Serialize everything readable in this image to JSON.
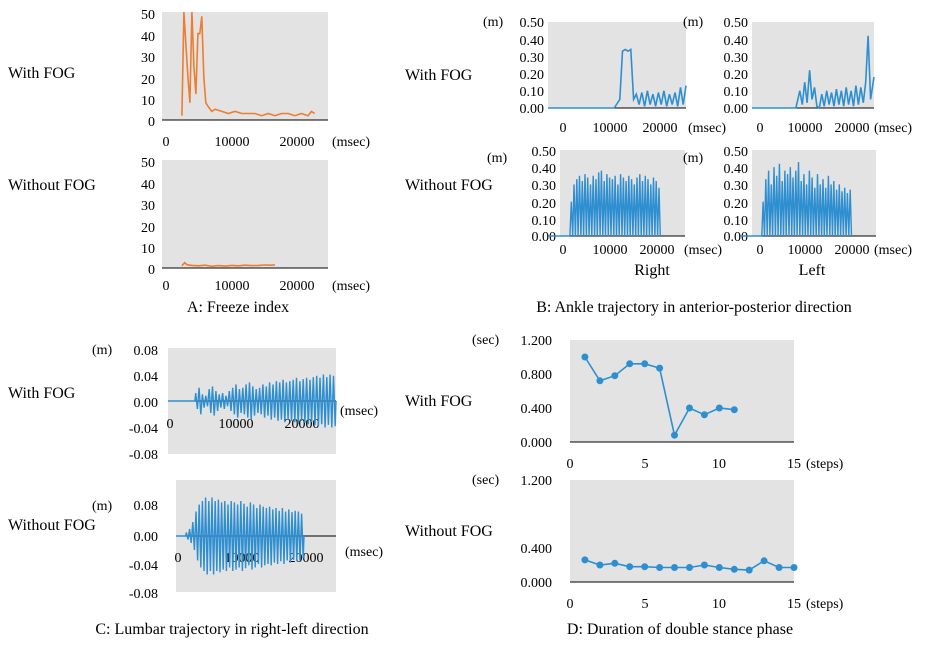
{
  "colors": {
    "orange": "#ed7d31",
    "blue": "#2e8fd0",
    "plot_bg": "#e3e3e3"
  },
  "panels": {
    "A": {
      "caption": "A: Freeze index",
      "row_labels": [
        "With FOG",
        "Without FOG"
      ],
      "x_unit": "(msec)",
      "y_ticks": [
        "0",
        "10",
        "20",
        "30",
        "40",
        "50"
      ],
      "x_ticks": [
        "0",
        "10000",
        "20000"
      ]
    },
    "B": {
      "caption": "B: Ankle trajectory in anterior-posterior direction",
      "row_labels": [
        "With FOG",
        "Without FOG"
      ],
      "y_unit": "(m)",
      "x_unit": "(msec)",
      "y_ticks": [
        "0.00",
        "0.10",
        "0.20",
        "0.30",
        "0.40",
        "0.50"
      ],
      "x_ticks": [
        "0",
        "10000",
        "20000"
      ],
      "col_labels": [
        "Right",
        "Left"
      ]
    },
    "C": {
      "caption": "C: Lumbar trajectory in right-left direction",
      "row_labels": [
        "With FOG",
        "Without FOG"
      ],
      "y_unit": "(m)",
      "x_unit": "(msec)",
      "y_ticks": [
        "0.08",
        "0.04",
        "0.00",
        "-0.04",
        "-0.08"
      ],
      "x_ticks": [
        "0",
        "10000",
        "20000"
      ]
    },
    "D": {
      "caption": "D: Duration of double stance phase",
      "row_labels": [
        "With FOG",
        "Without FOG"
      ],
      "y_unit": "(sec)",
      "x_unit": "(steps)",
      "y_ticks": [
        "0.000",
        "0.400",
        "0.800",
        "1.200"
      ],
      "x_ticks": [
        "0",
        "5",
        "10",
        "15"
      ]
    }
  },
  "chart_data": [
    {
      "id": "A-with",
      "type": "line",
      "panel": "A",
      "row": "With FOG",
      "xlim": [
        0,
        25000
      ],
      "ylim": [
        0,
        50
      ],
      "series": [
        {
          "color": "#ed7d31",
          "x": [
            3000,
            3300,
            3600,
            3900,
            4200,
            4500,
            4800,
            5100,
            5400,
            5700,
            6000,
            6300,
            6600,
            7000,
            7500,
            8000,
            9000,
            10000,
            11000,
            12000,
            13000,
            14000,
            15000,
            16000,
            17000,
            18000,
            19000,
            20000,
            21000,
            22000,
            22500,
            23000
          ],
          "y": [
            2,
            50,
            35,
            20,
            8,
            50,
            25,
            12,
            40,
            40,
            48,
            20,
            8,
            6,
            4,
            5,
            4,
            3,
            4,
            3,
            3,
            3,
            2,
            3,
            2,
            3,
            3,
            2,
            3,
            2,
            4,
            3
          ]
        }
      ]
    },
    {
      "id": "A-without",
      "type": "line",
      "panel": "A",
      "row": "Without FOG",
      "xlim": [
        0,
        25000
      ],
      "ylim": [
        0,
        50
      ],
      "series": [
        {
          "color": "#ed7d31",
          "x": [
            3000,
            3400,
            3800,
            4500,
            5500,
            6500,
            7500,
            8500,
            9500,
            10500,
            11500,
            12500,
            13500,
            14500,
            15500,
            16500,
            17000
          ],
          "y": [
            1,
            2.5,
            1.5,
            1.2,
            1.0,
            1.3,
            0.8,
            1.1,
            0.9,
            1.2,
            1.0,
            1.3,
            1.1,
            1.2,
            1.4,
            1.3,
            1.5
          ]
        }
      ]
    },
    {
      "id": "B-with-right",
      "type": "line",
      "panel": "B",
      "row": "With FOG",
      "column": "Right",
      "xlim": [
        0,
        25000
      ],
      "ylim": [
        0,
        0.5
      ],
      "series": [
        {
          "color": "#2e8fd0",
          "x": [
            0,
            12000,
            13000,
            13500,
            14000,
            14500,
            15000,
            15500,
            16000,
            16500,
            17000,
            17500,
            18000,
            18500,
            19000,
            19500,
            20000,
            20500,
            21000,
            21500,
            22000,
            22500,
            23000,
            23500,
            24000,
            24500,
            25000
          ],
          "y": [
            0,
            0,
            0.05,
            0.33,
            0.34,
            0.33,
            0.34,
            0.05,
            0.08,
            0.02,
            0.09,
            0.01,
            0.1,
            0.02,
            0.08,
            0.01,
            0.09,
            0.02,
            0.1,
            0.01,
            0.08,
            0.02,
            0.09,
            0.01,
            0.12,
            0.02,
            0.13
          ]
        }
      ]
    },
    {
      "id": "B-with-left",
      "type": "line",
      "panel": "B",
      "row": "With FOG",
      "column": "Left",
      "xlim": [
        0,
        25000
      ],
      "ylim": [
        0,
        0.5
      ],
      "series": [
        {
          "color": "#2e8fd0",
          "x": [
            0,
            9000,
            9800,
            10300,
            10800,
            11300,
            11800,
            12300,
            12800,
            13300,
            13800,
            14300,
            14800,
            15300,
            15800,
            16300,
            16800,
            17300,
            17800,
            18300,
            18800,
            19300,
            19800,
            20300,
            20800,
            21300,
            21800,
            22300,
            22800,
            23300,
            23800,
            24300,
            25000
          ],
          "y": [
            0,
            0,
            0.1,
            0.02,
            0.15,
            0.03,
            0.22,
            0.05,
            0.12,
            0.01,
            0,
            0.08,
            0.01,
            0.1,
            0.02,
            0.09,
            0.01,
            0.11,
            0.02,
            0.1,
            0.01,
            0.12,
            0.02,
            0.1,
            0.01,
            0.13,
            0.02,
            0.12,
            0.03,
            0.15,
            0.42,
            0.05,
            0.18
          ]
        }
      ]
    },
    {
      "id": "B-without-right",
      "type": "line",
      "panel": "B",
      "row": "Without FOG",
      "column": "Right",
      "xlim": [
        0,
        25000
      ],
      "ylim": [
        0,
        0.5
      ],
      "series": [
        {
          "color": "#2e8fd0",
          "x": [],
          "y": []
        }
      ],
      "pattern": {
        "x_start": 4000,
        "x_end": 20500,
        "period": 500,
        "peaks": [
          0.2,
          0.3,
          0.33,
          0.35,
          0.32,
          0.36,
          0.34,
          0.3,
          0.35,
          0.33,
          0.37,
          0.38,
          0.32,
          0.36,
          0.34,
          0.33,
          0.35,
          0.3,
          0.36,
          0.34,
          0.32,
          0.35,
          0.33,
          0.3,
          0.34,
          0.36,
          0.32,
          0.35,
          0.33,
          0.3,
          0.34,
          0.32,
          0.28
        ],
        "trough": 0.0
      }
    },
    {
      "id": "B-without-left",
      "type": "line",
      "panel": "B",
      "row": "Without FOG",
      "column": "Left",
      "xlim": [
        0,
        25000
      ],
      "ylim": [
        0,
        0.5
      ],
      "series": [
        {
          "color": "#2e8fd0",
          "x": [],
          "y": []
        }
      ],
      "pattern": {
        "x_start": 4000,
        "x_end": 20500,
        "period": 500,
        "peaks": [
          0.2,
          0.33,
          0.38,
          0.3,
          0.4,
          0.35,
          0.42,
          0.32,
          0.38,
          0.36,
          0.4,
          0.34,
          0.38,
          0.43,
          0.32,
          0.36,
          0.3,
          0.38,
          0.34,
          0.28,
          0.36,
          0.3,
          0.33,
          0.28,
          0.35,
          0.3,
          0.32,
          0.27,
          0.3,
          0.26,
          0.28,
          0.25,
          0.27
        ],
        "trough": 0.0
      }
    },
    {
      "id": "C-with",
      "type": "line",
      "panel": "C",
      "row": "With FOG",
      "xlim": [
        0,
        25000
      ],
      "ylim": [
        -0.08,
        0.08
      ],
      "series": [
        {
          "color": "#2e8fd0",
          "x": [],
          "y": []
        }
      ],
      "pattern": {
        "x_start": 4000,
        "x_end": 25000,
        "period": 500,
        "flat_before": 0.0,
        "amplitudes": [
          0.012,
          0.02,
          0.01,
          0.008,
          0.018,
          0.022,
          0.015,
          0.01,
          0.012,
          0.008,
          0.015,
          0.02,
          0.025,
          0.018,
          0.02,
          0.025,
          0.028,
          0.022,
          0.018,
          0.02,
          0.025,
          0.022,
          0.028,
          0.025,
          0.03,
          0.028,
          0.032,
          0.028,
          0.03,
          0.032,
          0.035,
          0.03,
          0.033,
          0.035,
          0.032,
          0.036,
          0.038,
          0.035,
          0.04,
          0.036,
          0.04,
          0.038
        ]
      }
    },
    {
      "id": "C-without",
      "type": "line",
      "panel": "C",
      "row": "Without FOG",
      "xlim": [
        0,
        25000
      ],
      "ylim": [
        -0.08,
        0.08
      ],
      "series": [
        {
          "color": "#2e8fd0",
          "x": [],
          "y": []
        }
      ],
      "pattern": {
        "x_start": 1500,
        "x_end": 20000,
        "period": 500,
        "flat_before": 0.0,
        "amplitudes": [
          0.005,
          0.01,
          0.02,
          0.035,
          0.045,
          0.05,
          0.055,
          0.05,
          0.055,
          0.05,
          0.052,
          0.048,
          0.05,
          0.045,
          0.05,
          0.048,
          0.045,
          0.05,
          0.046,
          0.042,
          0.048,
          0.045,
          0.04,
          0.045,
          0.042,
          0.04,
          0.042,
          0.038,
          0.04,
          0.036,
          0.04,
          0.035,
          0.038,
          0.034,
          0.036,
          0.035,
          0.032
        ]
      }
    },
    {
      "id": "D-with",
      "type": "line",
      "panel": "D",
      "row": "With FOG",
      "xlim": [
        0,
        15
      ],
      "ylim": [
        0,
        1.2
      ],
      "series": [
        {
          "color": "#2e8fd0",
          "x": [
            1,
            2,
            3,
            4,
            5,
            6,
            7,
            8,
            9,
            10,
            11
          ],
          "y": [
            1.0,
            0.72,
            0.78,
            0.92,
            0.92,
            0.87,
            0.08,
            0.4,
            0.32,
            0.4,
            0.38
          ]
        }
      ]
    },
    {
      "id": "D-without",
      "type": "line",
      "panel": "D",
      "row": "Without FOG",
      "xlim": [
        0,
        15
      ],
      "ylim": [
        0,
        1.2
      ],
      "series": [
        {
          "color": "#2e8fd0",
          "x": [
            1,
            2,
            3,
            4,
            5,
            6,
            7,
            8,
            9,
            10,
            11,
            12,
            13,
            14,
            15
          ],
          "y": [
            0.26,
            0.2,
            0.22,
            0.18,
            0.18,
            0.17,
            0.17,
            0.17,
            0.2,
            0.17,
            0.15,
            0.14,
            0.25,
            0.17,
            0.17
          ]
        }
      ]
    }
  ]
}
